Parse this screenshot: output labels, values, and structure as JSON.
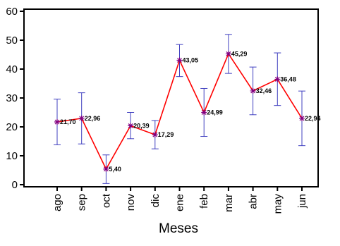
{
  "chart_data": {
    "type": "line",
    "title": "",
    "xlabel": "Meses",
    "ylabel": "",
    "ylim": [
      0,
      60
    ],
    "yticks": [
      0,
      10,
      20,
      30,
      40,
      50,
      60
    ],
    "grid": false,
    "categories": [
      "ago",
      "sep",
      "oct",
      "nov",
      "dic",
      "ene",
      "feb",
      "mar",
      "abr",
      "may",
      "jun"
    ],
    "series": [
      {
        "values": [
          21.7,
          22.96,
          5.4,
          20.39,
          17.29,
          43.05,
          24.99,
          45.29,
          32.46,
          36.48,
          22.94
        ],
        "labels": [
          "21,70",
          "22,96",
          "5,40",
          "20,39",
          "17,29",
          "43,05",
          "24,99",
          "45,29",
          "32,46",
          "36,48",
          "22,94"
        ],
        "error_low": [
          13.8,
          14.1,
          0.4,
          15.9,
          12.4,
          37.4,
          16.7,
          38.5,
          24.2,
          27.4,
          13.5
        ],
        "error_high": [
          29.6,
          31.8,
          10.3,
          25.0,
          22.2,
          48.5,
          33.3,
          52.0,
          40.7,
          45.6,
          32.4
        ],
        "line_color": "#ff0000",
        "marker_color": "#800080",
        "error_color": "#4040c0"
      }
    ],
    "axis_color": "#000000"
  }
}
